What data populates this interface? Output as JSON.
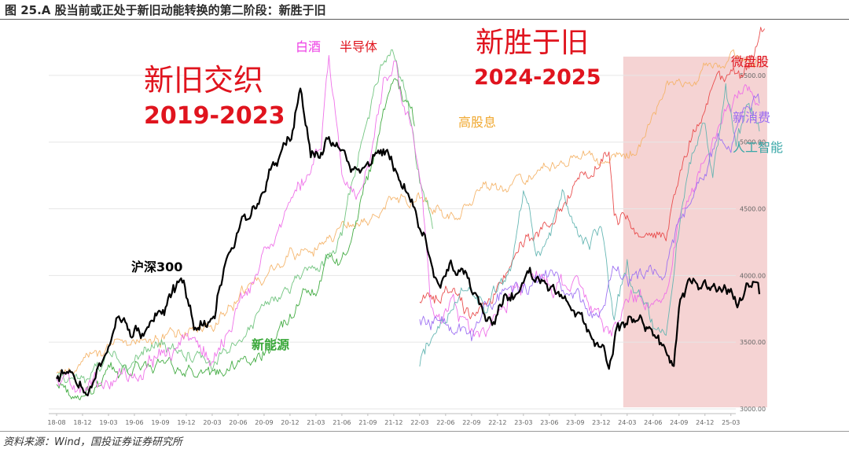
{
  "figure": {
    "title": "图 25.A 股当前或正处于新旧动能转换的第二阶段：新胜于旧",
    "source": "资料来源：Wind，国投证券证券研究所"
  },
  "colors": {
    "hs300": "#000000",
    "liquor": "#ee6ae8",
    "semiconductor": "#6cc27a",
    "new_energy": "#3aa83a",
    "high_dividend": "#f4b266",
    "micro_cap": "#e84646",
    "new_consumption": "#9a6cf2",
    "ai": "#5fb3b0",
    "highlight": "#f2c4c4",
    "annotation_red": "#e0141e"
  },
  "annotations": {
    "old_new_title": "新旧交织",
    "old_new_years": "2019-2023",
    "new_beats_old_title": "新胜于旧",
    "new_beats_old_years": "2024-2025",
    "hs300": "沪深300",
    "liquor": "白酒",
    "semiconductor": "半导体",
    "high_dividend": "高股息",
    "new_energy": "新能源",
    "micro_cap": "微盘股",
    "new_consumption": "新消费",
    "ai": "人工智能"
  },
  "chart_data": {
    "type": "line",
    "title": "",
    "xlabel": "",
    "ylabel": "",
    "x_ticks": [
      "18-08",
      "18-12",
      "19-03",
      "19-06",
      "19-09",
      "19-12",
      "20-03",
      "20-06",
      "20-09",
      "20-12",
      "21-03",
      "21-06",
      "21-09",
      "21-12",
      "22-03",
      "22-06",
      "22-09",
      "22-12",
      "23-03",
      "23-06",
      "23-09",
      "23-12",
      "24-03",
      "24-06",
      "24-09",
      "24-12",
      "25-03"
    ],
    "y_ticks": [
      "3000.00",
      "3500.00",
      "4000.00",
      "4500.00",
      "5000.00",
      "5500.00"
    ],
    "ylim": [
      3000,
      5800
    ],
    "y_axis_position": "right",
    "grid": true,
    "highlight_region": {
      "from": "24-01",
      "to": "25-05"
    },
    "series": [
      {
        "name": "沪深300",
        "color_key": "hs300",
        "seed": 11,
        "noise": 0.9,
        "points": [
          [
            0,
            3200
          ],
          [
            0.5,
            3260
          ],
          [
            1.2,
            3120
          ],
          [
            1.9,
            3330
          ],
          [
            2.4,
            3750
          ],
          [
            2.9,
            3580
          ],
          [
            3.4,
            3580
          ],
          [
            4.1,
            3800
          ],
          [
            4.9,
            3920
          ],
          [
            5.3,
            3620
          ],
          [
            6.1,
            3700
          ],
          [
            6.5,
            4150
          ],
          [
            7.1,
            4450
          ],
          [
            7.9,
            4600
          ],
          [
            8.5,
            4850
          ],
          [
            9.0,
            5050
          ],
          [
            9.4,
            5450
          ],
          [
            9.8,
            4900
          ],
          [
            10.5,
            5030
          ],
          [
            11.2,
            4840
          ],
          [
            11.8,
            4840
          ],
          [
            12.3,
            4900
          ],
          [
            12.8,
            4920
          ],
          [
            13.2,
            4750
          ],
          [
            13.8,
            4520
          ],
          [
            14.3,
            4250
          ],
          [
            14.8,
            3900
          ],
          [
            15.2,
            4100
          ],
          [
            15.8,
            4050
          ],
          [
            16.4,
            3750
          ],
          [
            16.8,
            3650
          ],
          [
            17.3,
            3880
          ],
          [
            17.7,
            3860
          ],
          [
            18.2,
            4050
          ],
          [
            19.0,
            3900
          ],
          [
            19.7,
            3780
          ],
          [
            20.3,
            3630
          ],
          [
            20.8,
            3530
          ],
          [
            21.1,
            3430
          ],
          [
            21.3,
            3300
          ],
          [
            21.6,
            3580
          ],
          [
            22.4,
            3680
          ],
          [
            22.8,
            3570
          ],
          [
            23.3,
            3510
          ],
          [
            23.6,
            3450
          ],
          [
            23.8,
            3330
          ],
          [
            24.0,
            3760
          ],
          [
            24.5,
            4020
          ],
          [
            25.1,
            3880
          ],
          [
            25.5,
            3900
          ],
          [
            25.8,
            3920
          ],
          [
            26.3,
            3820
          ],
          [
            26.7,
            3930
          ],
          [
            27.1,
            3860
          ]
        ]
      },
      {
        "name": "白酒",
        "color_key": "liquor",
        "seed": 23,
        "noise": 1.1,
        "points": [
          [
            0,
            3200
          ],
          [
            1.0,
            3110
          ],
          [
            2.0,
            3160
          ],
          [
            3.0,
            3230
          ],
          [
            4.0,
            3390
          ],
          [
            5.0,
            3450
          ],
          [
            6.0,
            3420
          ],
          [
            6.8,
            3610
          ],
          [
            7.5,
            3950
          ],
          [
            8.0,
            4150
          ],
          [
            8.5,
            4250
          ],
          [
            9.0,
            4580
          ],
          [
            9.6,
            4720
          ],
          [
            10.2,
            4950
          ],
          [
            10.5,
            5650
          ],
          [
            11.0,
            4680
          ],
          [
            11.5,
            4620
          ],
          [
            12.0,
            4880
          ],
          [
            12.6,
            5400
          ],
          [
            13.0,
            5550
          ],
          [
            13.6,
            5220
          ],
          [
            14.1,
            4650
          ],
          [
            14.4,
            3870
          ],
          [
            14.8,
            3700
          ],
          [
            15.3,
            3800
          ],
          [
            15.8,
            3600
          ],
          [
            16.4,
            3560
          ],
          [
            16.9,
            3660
          ],
          [
            17.6,
            3910
          ],
          [
            18.4,
            4020
          ],
          [
            19.2,
            3940
          ],
          [
            19.9,
            3950
          ],
          [
            20.4,
            3880
          ],
          [
            21.1,
            3700
          ],
          [
            21.6,
            3640
          ],
          [
            22.1,
            3880
          ],
          [
            22.8,
            3830
          ],
          [
            23.6,
            3850
          ],
          [
            24.0,
            4370
          ],
          [
            24.6,
            4750
          ],
          [
            25.2,
            4950
          ],
          [
            25.8,
            5240
          ],
          [
            26.3,
            5310
          ],
          [
            26.8,
            5390
          ],
          [
            27.1,
            5280
          ]
        ]
      },
      {
        "name": "半导体",
        "color_key": "semiconductor",
        "seed": 37,
        "noise": 0.9,
        "points": [
          [
            0,
            3200
          ],
          [
            1.0,
            3150
          ],
          [
            2.0,
            3340
          ],
          [
            3.0,
            3370
          ],
          [
            4.0,
            3470
          ],
          [
            5.0,
            3440
          ],
          [
            6.0,
            3340
          ],
          [
            7.0,
            3540
          ],
          [
            8.0,
            3740
          ],
          [
            9.0,
            3940
          ],
          [
            10.0,
            4090
          ],
          [
            11.0,
            4290
          ],
          [
            11.5,
            4750
          ],
          [
            12.0,
            5200
          ],
          [
            12.5,
            5500
          ],
          [
            13.0,
            5650
          ],
          [
            13.5,
            5300
          ],
          [
            14.0,
            4700
          ],
          [
            14.5,
            4350
          ]
        ]
      },
      {
        "name": "新能源",
        "color_key": "new_energy",
        "seed": 41,
        "noise": 0.9,
        "points": [
          [
            0,
            3180
          ],
          [
            1.0,
            3130
          ],
          [
            2.0,
            3250
          ],
          [
            3.0,
            3280
          ],
          [
            4.0,
            3330
          ],
          [
            5.0,
            3260
          ],
          [
            6.0,
            3240
          ],
          [
            7.0,
            3300
          ],
          [
            8.0,
            3440
          ],
          [
            9.0,
            3650
          ],
          [
            9.5,
            3820
          ],
          [
            10.0,
            3900
          ],
          [
            10.5,
            4150
          ],
          [
            11.0,
            4080
          ],
          [
            11.5,
            4400
          ],
          [
            12.0,
            4750
          ],
          [
            12.5,
            5150
          ],
          [
            13.0,
            5500
          ],
          [
            13.5,
            5300
          ],
          [
            13.8,
            5120
          ]
        ]
      },
      {
        "name": "高股息",
        "color_key": "high_dividend",
        "seed": 53,
        "noise": 0.8,
        "points": [
          [
            0,
            3240
          ],
          [
            1.0,
            3280
          ],
          [
            2.0,
            3460
          ],
          [
            3.0,
            3520
          ],
          [
            4.0,
            3540
          ],
          [
            5.0,
            3610
          ],
          [
            6.0,
            3640
          ],
          [
            7.0,
            3860
          ],
          [
            8.0,
            3960
          ],
          [
            9.0,
            4140
          ],
          [
            10.0,
            4240
          ],
          [
            11.0,
            4360
          ],
          [
            12.0,
            4400
          ],
          [
            13.0,
            4540
          ],
          [
            14.0,
            4560
          ],
          [
            14.5,
            4460
          ],
          [
            15.5,
            4450
          ],
          [
            16.5,
            4660
          ],
          [
            17.5,
            4680
          ],
          [
            18.5,
            4780
          ],
          [
            19.5,
            4860
          ],
          [
            20.5,
            4900
          ],
          [
            21.5,
            4880
          ],
          [
            22.5,
            4940
          ],
          [
            23.0,
            5200
          ],
          [
            23.5,
            5420
          ],
          [
            24.0,
            5430
          ],
          [
            24.5,
            5360
          ],
          [
            25.0,
            5520
          ],
          [
            25.5,
            5550
          ],
          [
            26.0,
            5640
          ],
          [
            26.5,
            5610
          ],
          [
            27.1,
            5560
          ]
        ]
      },
      {
        "name": "微盘股",
        "color_key": "micro_cap",
        "seed": 67,
        "noise": 0.9,
        "points": [
          [
            14.0,
            3780
          ],
          [
            15.0,
            3850
          ],
          [
            16.0,
            3700
          ],
          [
            17.0,
            3900
          ],
          [
            18.0,
            4230
          ],
          [
            19.0,
            4380
          ],
          [
            20.0,
            4720
          ],
          [
            21.0,
            4840
          ],
          [
            21.3,
            4900
          ],
          [
            21.5,
            4500
          ],
          [
            22.0,
            4450
          ],
          [
            22.5,
            4250
          ],
          [
            23.0,
            4300
          ],
          [
            23.5,
            4250
          ],
          [
            24.0,
            4700
          ],
          [
            24.5,
            5050
          ],
          [
            25.0,
            5210
          ],
          [
            25.5,
            5450
          ],
          [
            26.0,
            5550
          ],
          [
            26.5,
            5500
          ],
          [
            27.0,
            5700
          ],
          [
            27.3,
            5850
          ]
        ]
      },
      {
        "name": "新消费",
        "color_key": "new_consumption",
        "seed": 79,
        "noise": 1.0,
        "points": [
          [
            14.0,
            3650
          ],
          [
            15.0,
            3650
          ],
          [
            16.0,
            3500
          ],
          [
            16.5,
            3720
          ],
          [
            17.0,
            3820
          ],
          [
            18.0,
            3900
          ],
          [
            19.0,
            3990
          ],
          [
            20.0,
            3880
          ],
          [
            20.5,
            3800
          ],
          [
            21.0,
            3720
          ],
          [
            21.5,
            4050
          ],
          [
            22.0,
            3960
          ],
          [
            22.5,
            4020
          ],
          [
            23.0,
            4050
          ],
          [
            23.5,
            3980
          ],
          [
            24.0,
            4400
          ],
          [
            24.5,
            4600
          ],
          [
            25.0,
            4800
          ],
          [
            25.5,
            5050
          ],
          [
            26.0,
            4950
          ],
          [
            26.5,
            5200
          ],
          [
            27.0,
            5350
          ],
          [
            27.1,
            5290
          ]
        ]
      },
      {
        "name": "人工智能",
        "color_key": "ai",
        "seed": 91,
        "noise": 1.0,
        "points": [
          [
            14.0,
            3300
          ],
          [
            14.5,
            3550
          ],
          [
            15.0,
            3650
          ],
          [
            15.5,
            3780
          ],
          [
            16.0,
            3850
          ],
          [
            16.5,
            3720
          ],
          [
            17.0,
            3900
          ],
          [
            17.5,
            4000
          ],
          [
            18.0,
            4600
          ],
          [
            18.5,
            4200
          ],
          [
            19.0,
            4250
          ],
          [
            19.5,
            4600
          ],
          [
            20.0,
            4300
          ],
          [
            20.5,
            4150
          ],
          [
            21.0,
            4400
          ],
          [
            21.5,
            3700
          ],
          [
            22.0,
            4100
          ],
          [
            22.5,
            3800
          ],
          [
            23.0,
            3600
          ],
          [
            23.5,
            3550
          ],
          [
            24.0,
            4400
          ],
          [
            24.5,
            4950
          ],
          [
            25.0,
            5200
          ],
          [
            25.3,
            4700
          ],
          [
            25.8,
            5350
          ],
          [
            26.2,
            5000
          ],
          [
            26.6,
            5250
          ],
          [
            27.1,
            5080
          ]
        ]
      }
    ]
  }
}
